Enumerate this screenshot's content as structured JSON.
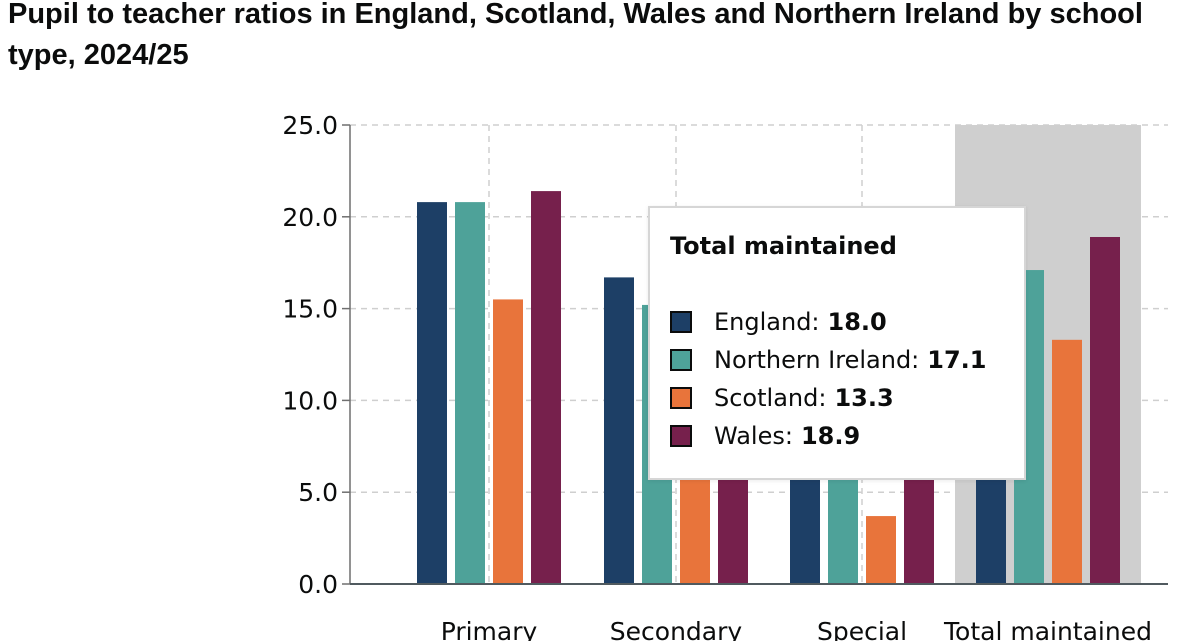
{
  "title": "Pupil to teacher ratios in England, Scotland, Wales and Northern Ireland by school type, 2024/25",
  "chart_data": {
    "type": "bar",
    "categories": [
      "Primary",
      "Secondary",
      "Special",
      "Total maintained"
    ],
    "series": [
      {
        "name": "England",
        "color": "#1d3f66",
        "values": [
          20.8,
          16.7,
          6.1,
          18.0
        ]
      },
      {
        "name": "Northern Ireland",
        "color": "#4ea299",
        "values": [
          20.8,
          15.2,
          6.6,
          17.1
        ]
      },
      {
        "name": "Scotland",
        "color": "#e8743b",
        "values": [
          15.5,
          6.6,
          3.7,
          13.3
        ]
      },
      {
        "name": "Wales",
        "color": "#76204c",
        "values": [
          21.4,
          6.7,
          6.3,
          18.9
        ]
      }
    ],
    "ylim": [
      0,
      25
    ],
    "yticks": [
      "0.0",
      "5.0",
      "10.0",
      "15.0",
      "20.0",
      "25.0"
    ],
    "grid": true,
    "highlighted_category": "Total maintained",
    "highlight_color": "#cfcfcf"
  },
  "tooltip": {
    "title": "Total maintained",
    "rows": [
      {
        "label": "England:",
        "value": "18.0",
        "color": "#1d3f66"
      },
      {
        "label": "Northern Ireland:",
        "value": "17.1",
        "color": "#4ea299"
      },
      {
        "label": "Scotland:",
        "value": "13.3",
        "color": "#e8743b"
      },
      {
        "label": "Wales:",
        "value": "18.9",
        "color": "#76204c"
      }
    ]
  }
}
